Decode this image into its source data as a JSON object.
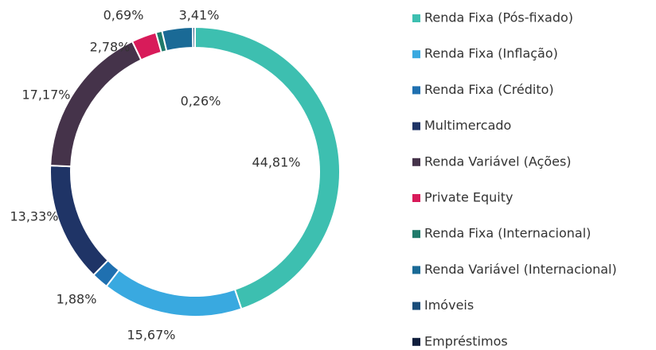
{
  "chart_data": {
    "type": "donut",
    "categories": [
      "Renda Fixa (Pós-fixado)",
      "Renda Fixa (Inflação)",
      "Renda Fixa (Crédito)",
      "Multimercado",
      "Renda Variável (Ações)",
      "Private Equity",
      "Renda Fixa (Internacional)",
      "Renda Variável (Internacional)",
      "Imóveis",
      "Empréstimos"
    ],
    "values": [
      44.81,
      15.67,
      1.88,
      13.33,
      17.17,
      2.78,
      0.69,
      3.41,
      0.26,
      null
    ],
    "value_labels": [
      "44,81%",
      "15,67%",
      "1,88%",
      "13,33%",
      "17,17%",
      "2,78%",
      "0,69%",
      "3,41%",
      "0,26%",
      null
    ],
    "colors": [
      "#3dbfb0",
      "#39a9e0",
      "#1f70b0",
      "#1f3466",
      "#45334a",
      "#d81b5a",
      "#1f7a6a",
      "#1a6a96",
      "#1a4d7a",
      "#0f1e3d"
    ],
    "legend": "right"
  }
}
